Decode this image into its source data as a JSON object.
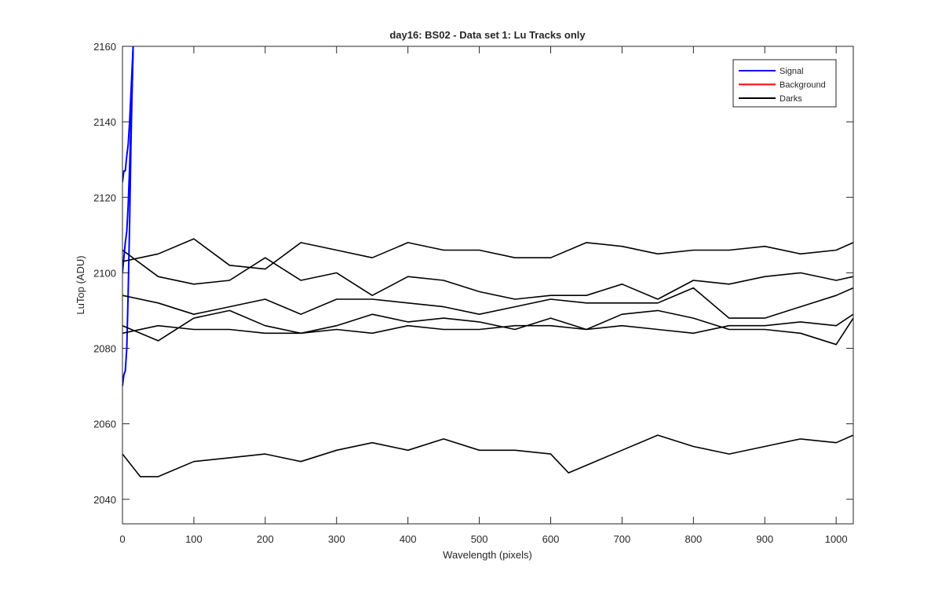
{
  "chart_data": {
    "type": "line",
    "title": "day16: BS02 - Data set 1: Lu Tracks only",
    "xlabel": "Wavelength (pixels)",
    "ylabel": "LuTop (ADU)",
    "xlim": [
      0,
      1024
    ],
    "ylim": [
      2033.5,
      2160
    ],
    "x_ticks": [
      0,
      100,
      200,
      300,
      400,
      500,
      600,
      700,
      800,
      900,
      1000
    ],
    "y_ticks": [
      2040,
      2060,
      2080,
      2100,
      2120,
      2140,
      2160
    ],
    "grid": false,
    "legend_position": "top-right",
    "legend": [
      {
        "label": "Signal",
        "color": "#0000ff"
      },
      {
        "label": "Background",
        "color": "#ff0000"
      },
      {
        "label": "Darks",
        "color": "#000000"
      }
    ],
    "series": [
      {
        "name": "Signal",
        "color": "#0000ff",
        "x": [
          0,
          2,
          4,
          6,
          8,
          10,
          12,
          14,
          15
        ],
        "y": [
          2070,
          2073,
          2074,
          2080,
          2095,
          2113,
          2135,
          2152,
          2160
        ]
      },
      {
        "name": "Signal",
        "color": "#0000ff",
        "x": [
          0,
          2,
          4,
          6,
          8,
          10,
          12,
          14,
          15
        ],
        "y": [
          2124,
          2127,
          2127,
          2131,
          2134,
          2140,
          2148,
          2156,
          2160
        ]
      },
      {
        "name": "Signal",
        "color": "#0000ff",
        "x": [
          0,
          2,
          4,
          6,
          8,
          10,
          12,
          14,
          15
        ],
        "y": [
          2100,
          2104,
          2108,
          2111,
          2118,
          2128,
          2140,
          2152,
          2160
        ]
      },
      {
        "name": "Darks",
        "color": "#000000",
        "x": [
          0,
          50,
          100,
          150,
          200,
          250,
          300,
          350,
          400,
          450,
          500,
          550,
          600,
          650,
          700,
          750,
          800,
          850,
          900,
          950,
          1000,
          1024
        ],
        "y": [
          2103,
          2105,
          2109,
          2102,
          2101,
          2108,
          2106,
          2104,
          2108,
          2106,
          2106,
          2104,
          2104,
          2108,
          2107,
          2105,
          2106,
          2106,
          2107,
          2105,
          2106,
          2108
        ]
      },
      {
        "name": "Darks",
        "color": "#000000",
        "x": [
          0,
          50,
          100,
          150,
          200,
          250,
          300,
          350,
          400,
          450,
          500,
          550,
          600,
          650,
          700,
          750,
          800,
          850,
          900,
          950,
          1000,
          1024
        ],
        "y": [
          2106,
          2099,
          2097,
          2098,
          2104,
          2098,
          2100,
          2094,
          2099,
          2098,
          2095,
          2093,
          2094,
          2094,
          2097,
          2093,
          2098,
          2097,
          2099,
          2100,
          2098,
          2099
        ]
      },
      {
        "name": "Darks",
        "color": "#000000",
        "x": [
          0,
          50,
          100,
          150,
          200,
          250,
          300,
          350,
          400,
          450,
          500,
          550,
          600,
          650,
          700,
          750,
          800,
          850,
          900,
          950,
          1000,
          1024
        ],
        "y": [
          2094,
          2092,
          2089,
          2091,
          2093,
          2089,
          2093,
          2093,
          2092,
          2091,
          2089,
          2091,
          2093,
          2092,
          2092,
          2092,
          2096,
          2088,
          2088,
          2091,
          2094,
          2096
        ]
      },
      {
        "name": "Darks",
        "color": "#000000",
        "x": [
          0,
          50,
          100,
          150,
          200,
          250,
          300,
          350,
          400,
          450,
          500,
          550,
          600,
          650,
          700,
          750,
          800,
          850,
          900,
          950,
          1000,
          1024
        ],
        "y": [
          2086,
          2082,
          2088,
          2090,
          2086,
          2084,
          2086,
          2089,
          2087,
          2088,
          2087,
          2085,
          2088,
          2085,
          2089,
          2090,
          2088,
          2085,
          2085,
          2084,
          2081,
          2088
        ]
      },
      {
        "name": "Darks",
        "color": "#000000",
        "x": [
          0,
          50,
          100,
          150,
          200,
          250,
          300,
          350,
          400,
          450,
          500,
          550,
          600,
          650,
          700,
          750,
          800,
          850,
          900,
          950,
          1000,
          1024
        ],
        "y": [
          2084,
          2086,
          2085,
          2085,
          2084,
          2084,
          2085,
          2084,
          2086,
          2085,
          2085,
          2086,
          2086,
          2085,
          2086,
          2085,
          2084,
          2086,
          2086,
          2087,
          2086,
          2089
        ]
      },
      {
        "name": "Darks",
        "color": "#000000",
        "x": [
          0,
          25,
          50,
          100,
          150,
          200,
          250,
          300,
          350,
          400,
          450,
          500,
          550,
          600,
          625,
          650,
          700,
          750,
          800,
          850,
          900,
          950,
          1000,
          1024
        ],
        "y": [
          2052,
          2046,
          2046,
          2050,
          2051,
          2052,
          2050,
          2053,
          2055,
          2053,
          2056,
          2053,
          2053,
          2052,
          2047,
          2049,
          2053,
          2057,
          2054,
          2052,
          2054,
          2056,
          2055,
          2057
        ]
      }
    ]
  }
}
